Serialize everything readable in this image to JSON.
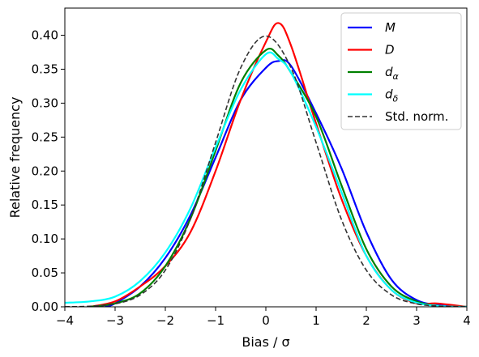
{
  "chart_data": {
    "type": "line",
    "xlabel": "Bias / σ",
    "ylabel": "Relative frequency",
    "xlim": [
      -4,
      4
    ],
    "ylim": [
      0,
      0.44
    ],
    "xticks": [
      -4,
      -3,
      -2,
      -1,
      0,
      1,
      2,
      3,
      4
    ],
    "xtick_labels": [
      "−4",
      "−3",
      "−2",
      "−1",
      "0",
      "1",
      "2",
      "3",
      "4"
    ],
    "yticks": [
      0.0,
      0.05,
      0.1,
      0.15,
      0.2,
      0.25,
      0.3,
      0.35,
      0.4
    ],
    "ytick_labels": [
      "0.00",
      "0.05",
      "0.10",
      "0.15",
      "0.20",
      "0.25",
      "0.30",
      "0.35",
      "0.40"
    ],
    "grid": false,
    "legend_position": "top-right",
    "series": [
      {
        "name": "M",
        "sub": "",
        "color": "#0000ff",
        "dashed": false,
        "x": [
          -3.2,
          -3.0,
          -2.5,
          -2.0,
          -1.5,
          -1.0,
          -0.5,
          0.0,
          0.25,
          0.5,
          1.0,
          1.5,
          2.0,
          2.5,
          3.0,
          3.5,
          4.0
        ],
        "y": [
          0.0,
          0.005,
          0.03,
          0.072,
          0.135,
          0.22,
          0.305,
          0.352,
          0.362,
          0.355,
          0.285,
          0.205,
          0.11,
          0.04,
          0.01,
          0.002,
          0.0
        ]
      },
      {
        "name": "D",
        "sub": "",
        "color": "#ff0000",
        "dashed": false,
        "x": [
          -3.5,
          -3.0,
          -2.5,
          -2.0,
          -1.5,
          -1.0,
          -0.5,
          0.0,
          0.25,
          0.5,
          1.0,
          1.5,
          2.0,
          2.5,
          3.0,
          3.4,
          4.0
        ],
        "y": [
          0.0,
          0.008,
          0.03,
          0.06,
          0.11,
          0.2,
          0.305,
          0.39,
          0.418,
          0.385,
          0.27,
          0.16,
          0.075,
          0.025,
          0.005,
          0.005,
          0.0
        ]
      },
      {
        "name": "d",
        "sub": "α",
        "color": "#008000",
        "dashed": false,
        "x": [
          -3.5,
          -3.0,
          -2.5,
          -2.0,
          -1.5,
          -1.0,
          -0.5,
          0.0,
          0.25,
          0.5,
          1.0,
          1.5,
          2.0,
          2.5,
          3.0,
          3.5,
          4.0
        ],
        "y": [
          0.0,
          0.005,
          0.02,
          0.06,
          0.13,
          0.23,
          0.33,
          0.378,
          0.37,
          0.345,
          0.28,
          0.18,
          0.085,
          0.03,
          0.008,
          0.001,
          0.0
        ]
      },
      {
        "name": "d",
        "sub": "δ",
        "color": "#00ffff",
        "dashed": false,
        "x": [
          -4.0,
          -3.5,
          -3.0,
          -2.5,
          -2.0,
          -1.5,
          -1.0,
          -0.5,
          0.0,
          0.25,
          0.5,
          1.0,
          1.5,
          2.0,
          2.5,
          3.0,
          3.5,
          4.0
        ],
        "y": [
          0.006,
          0.008,
          0.015,
          0.038,
          0.08,
          0.145,
          0.235,
          0.32,
          0.372,
          0.365,
          0.345,
          0.265,
          0.17,
          0.075,
          0.025,
          0.006,
          0.001,
          0.0
        ]
      },
      {
        "name": "Std. norm.",
        "sub": "",
        "color": "#333333",
        "dashed": true,
        "x": [
          -4.0,
          -3.5,
          -3.0,
          -2.5,
          -2.0,
          -1.5,
          -1.0,
          -0.5,
          0.0,
          0.5,
          1.0,
          1.5,
          2.0,
          2.5,
          3.0,
          3.5,
          4.0
        ],
        "y": [
          0.0001,
          0.0009,
          0.0044,
          0.0175,
          0.054,
          0.1295,
          0.242,
          0.3521,
          0.3989,
          0.3521,
          0.242,
          0.1295,
          0.054,
          0.0175,
          0.0044,
          0.0009,
          0.0001
        ]
      }
    ]
  }
}
